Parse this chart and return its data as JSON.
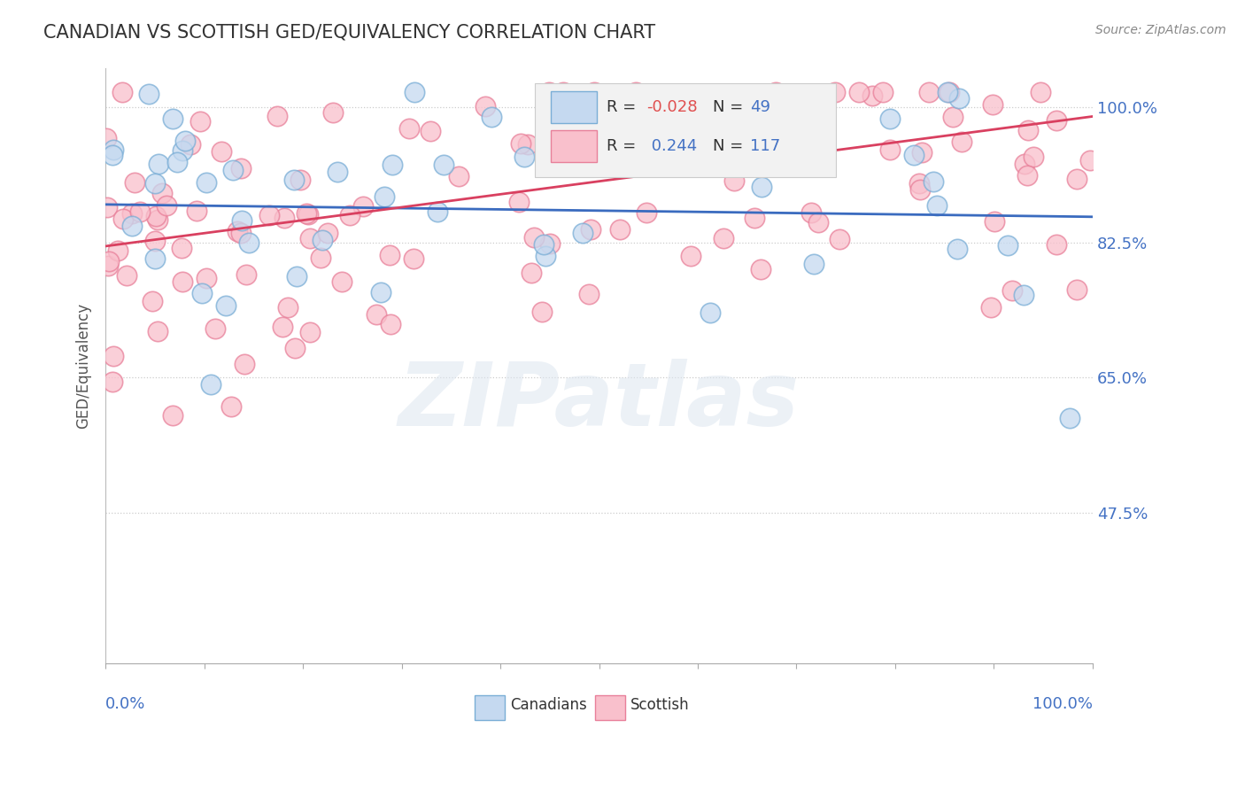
{
  "title": "CANADIAN VS SCOTTISH GED/EQUIVALENCY CORRELATION CHART",
  "source": "Source: ZipAtlas.com",
  "ylabel": "GED/Equivalency",
  "ytick_labels": [
    "100.0%",
    "82.5%",
    "65.0%",
    "47.5%"
  ],
  "ytick_values": [
    1.0,
    0.825,
    0.65,
    0.475
  ],
  "xlim": [
    0.0,
    1.0
  ],
  "ylim": [
    0.28,
    1.05
  ],
  "legend_r_canadian": "-0.028",
  "legend_n_canadian": "49",
  "legend_r_scottish": "0.244",
  "legend_n_scottish": "117",
  "canadian_fill": "#c5d9f0",
  "canadian_edge": "#7aaed6",
  "scottish_fill": "#f9c0cc",
  "scottish_edge": "#e8809a",
  "canadian_line_color": "#3a6bbf",
  "scottish_line_color": "#d94060",
  "background_color": "#ffffff",
  "watermark": "ZIPatlas",
  "ca_trend_y0": 0.874,
  "ca_trend_y1": 0.858,
  "sc_trend_y0": 0.82,
  "sc_trend_y1": 0.988
}
